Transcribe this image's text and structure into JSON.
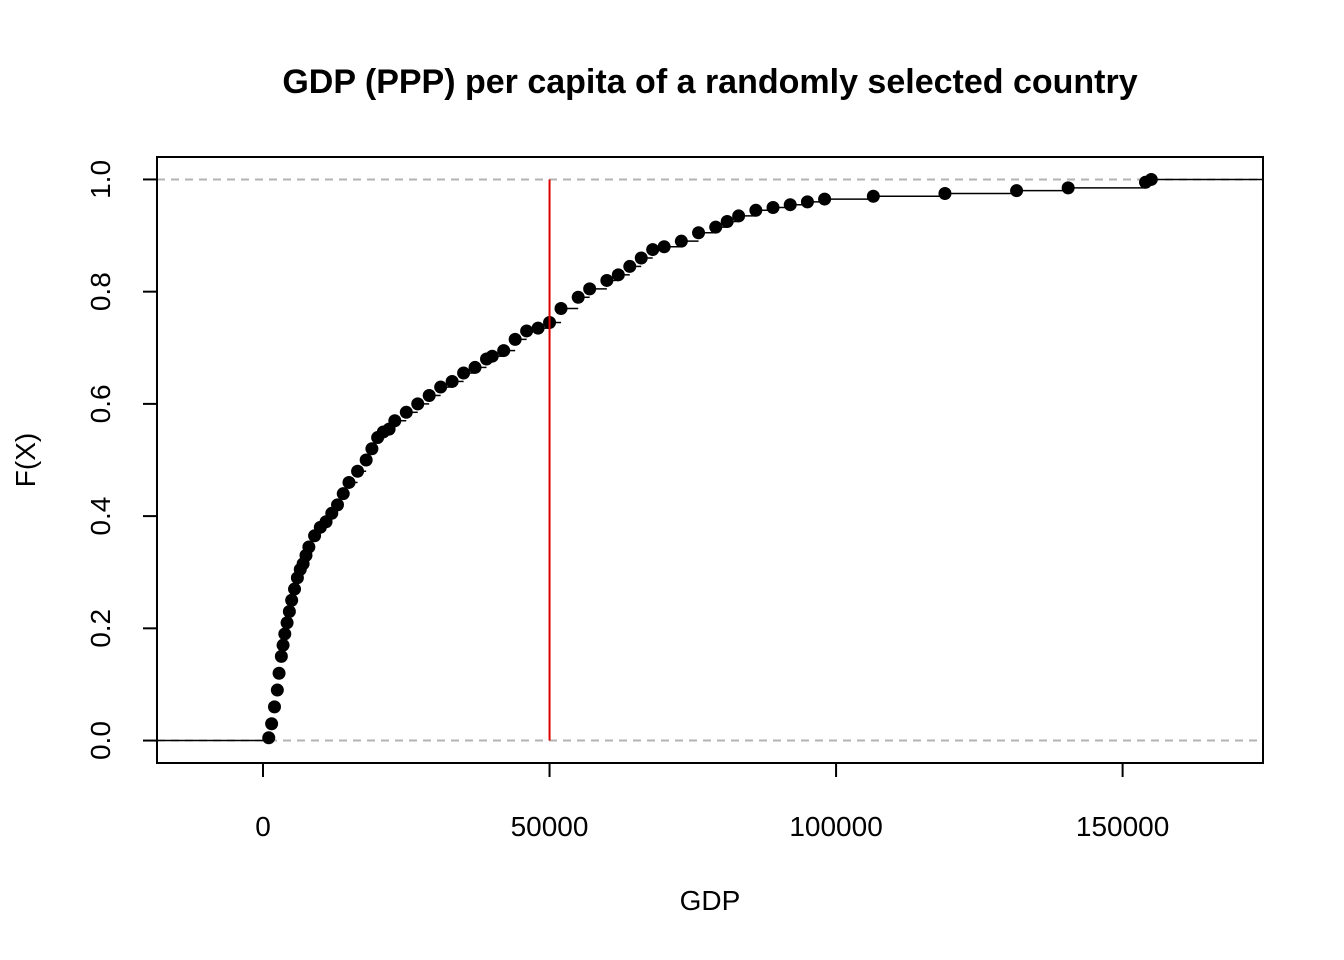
{
  "chart_data": {
    "type": "scatter",
    "subtype": "empirical-cdf-step",
    "title": "GDP (PPP) per capita of a randomly selected country",
    "xlabel": "GDP",
    "ylabel": "F(X)",
    "xlim": [
      -18500,
      174500
    ],
    "ylim": [
      -0.04,
      1.04
    ],
    "xticks": [
      0,
      50000,
      100000,
      150000
    ],
    "xtick_labels": [
      "0",
      "50000",
      "100000",
      "150000"
    ],
    "yticks": [
      0.0,
      0.2,
      0.4,
      0.6,
      0.8,
      1.0
    ],
    "ytick_labels": [
      "0.0",
      "0.2",
      "0.4",
      "0.6",
      "0.8",
      "1.0"
    ],
    "reference_lines": {
      "horizontal": [
        0.0,
        1.0
      ],
      "horizontal_style": "dashed gray",
      "vertical": [
        50000
      ],
      "vertical_color": "#e00000"
    },
    "point_color": "#000000",
    "series": [
      {
        "x": [
          1000,
          1500,
          2000,
          2500,
          2800,
          3200,
          3500,
          3800,
          4200,
          4600,
          5000,
          5500,
          6000,
          6500,
          7000,
          7500,
          8000,
          9000,
          10000,
          11000,
          12000,
          13000,
          14000,
          15000,
          16500,
          18000,
          19000,
          20000,
          21000,
          22000,
          23000,
          25000,
          27000,
          29000,
          31000,
          33000,
          35000,
          37000,
          39000,
          40000,
          42000,
          44000,
          46000,
          48000,
          50000,
          52000,
          55000,
          57000,
          60000,
          62000,
          64000,
          66000,
          68000,
          70000,
          73000,
          76000,
          79000,
          81000,
          83000,
          86000,
          89000,
          92000,
          95000,
          98000,
          106500,
          119000,
          131500,
          140500,
          154000,
          155000
        ],
        "y": [
          0.005,
          0.03,
          0.06,
          0.09,
          0.12,
          0.15,
          0.17,
          0.19,
          0.21,
          0.23,
          0.25,
          0.27,
          0.29,
          0.305,
          0.315,
          0.33,
          0.345,
          0.365,
          0.38,
          0.39,
          0.405,
          0.42,
          0.44,
          0.46,
          0.48,
          0.5,
          0.52,
          0.54,
          0.55,
          0.555,
          0.57,
          0.585,
          0.6,
          0.615,
          0.63,
          0.64,
          0.655,
          0.665,
          0.68,
          0.685,
          0.695,
          0.715,
          0.73,
          0.735,
          0.745,
          0.77,
          0.79,
          0.805,
          0.82,
          0.83,
          0.845,
          0.86,
          0.875,
          0.88,
          0.89,
          0.905,
          0.915,
          0.925,
          0.935,
          0.945,
          0.95,
          0.955,
          0.96,
          0.965,
          0.97,
          0.975,
          0.98,
          0.985,
          0.995,
          1.0
        ]
      }
    ]
  }
}
